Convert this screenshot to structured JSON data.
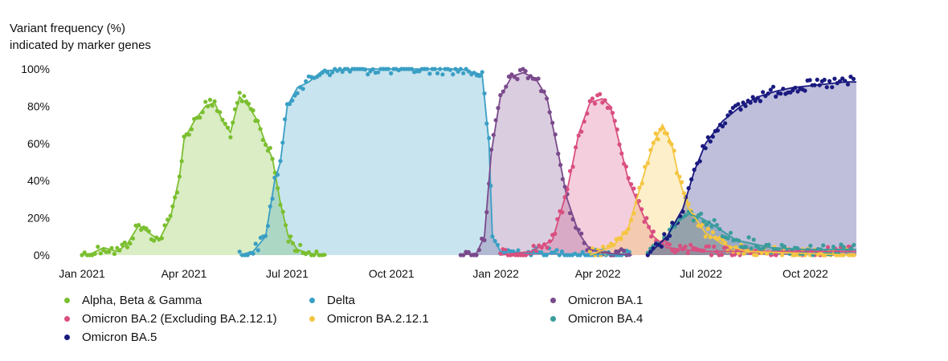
{
  "chart_data": {
    "type": "area",
    "ylabel_lines": [
      "Variant frequency (%)",
      "indicated by marker genes"
    ],
    "x_ticks": [
      "Jan 2021",
      "Apr 2021",
      "Jul 2021",
      "Oct 2021",
      "Jan 2022",
      "Apr 2022",
      "Jul 2022",
      "Oct 2022"
    ],
    "y_ticks": [
      "0%",
      "20%",
      "40%",
      "60%",
      "80%",
      "100%"
    ],
    "ylim": [
      0,
      100
    ],
    "x_range_months": [
      "2021-01",
      "2022-11"
    ],
    "grid": false,
    "legend_position": "bottom",
    "series": [
      {
        "name": "Alpha, Beta & Gamma",
        "color": "#7bbf30",
        "points": [
          [
            "2021-01-01",
            0
          ],
          [
            "2021-01-10",
            1
          ],
          [
            "2021-01-20",
            4
          ],
          [
            "2021-02-01",
            2
          ],
          [
            "2021-02-10",
            6
          ],
          [
            "2021-02-20",
            16
          ],
          [
            "2021-03-01",
            12
          ],
          [
            "2021-03-10",
            8
          ],
          [
            "2021-03-20",
            20
          ],
          [
            "2021-03-28",
            42
          ],
          [
            "2021-04-01",
            62
          ],
          [
            "2021-04-10",
            72
          ],
          [
            "2021-04-20",
            80
          ],
          [
            "2021-04-28",
            82
          ],
          [
            "2021-05-05",
            72
          ],
          [
            "2021-05-12",
            66
          ],
          [
            "2021-05-20",
            85
          ],
          [
            "2021-05-28",
            80
          ],
          [
            "2021-06-05",
            72
          ],
          [
            "2021-06-12",
            60
          ],
          [
            "2021-06-18",
            52
          ],
          [
            "2021-06-25",
            28
          ],
          [
            "2021-07-02",
            10
          ],
          [
            "2021-07-10",
            3
          ],
          [
            "2021-07-20",
            1
          ],
          [
            "2021-08-05",
            0
          ]
        ]
      },
      {
        "name": "Delta",
        "color": "#3a9fc4",
        "points": [
          [
            "2021-05-20",
            0
          ],
          [
            "2021-06-01",
            2
          ],
          [
            "2021-06-12",
            10
          ],
          [
            "2021-06-20",
            40
          ],
          [
            "2021-06-25",
            50
          ],
          [
            "2021-07-01",
            80
          ],
          [
            "2021-07-10",
            90
          ],
          [
            "2021-07-20",
            93
          ],
          [
            "2021-08-01",
            99
          ],
          [
            "2021-09-01",
            100
          ],
          [
            "2021-12-01",
            100
          ],
          [
            "2021-12-20",
            97
          ],
          [
            "2021-12-26",
            60
          ],
          [
            "2021-12-29",
            10
          ],
          [
            "2022-01-05",
            2
          ],
          [
            "2022-02-01",
            1
          ],
          [
            "2022-05-01",
            0
          ]
        ]
      },
      {
        "name": "Omicron BA.1",
        "color": "#7a4a8c",
        "points": [
          [
            "2021-12-01",
            0
          ],
          [
            "2021-12-15",
            1
          ],
          [
            "2021-12-22",
            10
          ],
          [
            "2021-12-28",
            55
          ],
          [
            "2022-01-05",
            85
          ],
          [
            "2022-01-15",
            96
          ],
          [
            "2022-01-25",
            98
          ],
          [
            "2022-02-05",
            95
          ],
          [
            "2022-02-15",
            85
          ],
          [
            "2022-02-25",
            55
          ],
          [
            "2022-03-05",
            30
          ],
          [
            "2022-03-15",
            12
          ],
          [
            "2022-03-25",
            3
          ],
          [
            "2022-04-10",
            1
          ],
          [
            "2022-05-01",
            0
          ]
        ]
      },
      {
        "name": "Omicron BA.2 (Excluding BA.2.12.1)",
        "color": "#d94f80",
        "points": [
          [
            "2022-01-05",
            0
          ],
          [
            "2022-02-01",
            2
          ],
          [
            "2022-02-20",
            8
          ],
          [
            "2022-03-05",
            35
          ],
          [
            "2022-03-15",
            65
          ],
          [
            "2022-03-25",
            82
          ],
          [
            "2022-04-05",
            84
          ],
          [
            "2022-04-12",
            80
          ],
          [
            "2022-04-20",
            60
          ],
          [
            "2022-04-28",
            40
          ],
          [
            "2022-05-05",
            30
          ],
          [
            "2022-05-12",
            20
          ],
          [
            "2022-05-20",
            10
          ],
          [
            "2022-06-01",
            4
          ],
          [
            "2022-07-01",
            2
          ],
          [
            "2022-11-15",
            2
          ]
        ]
      },
      {
        "name": "Omicron BA.2.12.1",
        "color": "#f5c542",
        "points": [
          [
            "2022-03-25",
            0
          ],
          [
            "2022-04-15",
            5
          ],
          [
            "2022-04-28",
            15
          ],
          [
            "2022-05-10",
            40
          ],
          [
            "2022-05-20",
            60
          ],
          [
            "2022-05-28",
            70
          ],
          [
            "2022-06-05",
            60
          ],
          [
            "2022-06-12",
            40
          ],
          [
            "2022-06-20",
            25
          ],
          [
            "2022-07-05",
            12
          ],
          [
            "2022-07-20",
            6
          ],
          [
            "2022-08-10",
            2
          ],
          [
            "2022-11-15",
            0
          ]
        ]
      },
      {
        "name": "Omicron BA.4",
        "color": "#3a9c9c",
        "points": [
          [
            "2022-05-15",
            0
          ],
          [
            "2022-06-01",
            10
          ],
          [
            "2022-06-10",
            18
          ],
          [
            "2022-06-20",
            22
          ],
          [
            "2022-07-01",
            20
          ],
          [
            "2022-07-15",
            15
          ],
          [
            "2022-08-01",
            8
          ],
          [
            "2022-09-01",
            4
          ],
          [
            "2022-10-01",
            3
          ],
          [
            "2022-11-15",
            3
          ]
        ]
      },
      {
        "name": "Omicron BA.5",
        "color": "#1a1a80",
        "points": [
          [
            "2022-05-15",
            0
          ],
          [
            "2022-06-01",
            10
          ],
          [
            "2022-06-15",
            25
          ],
          [
            "2022-06-25",
            45
          ],
          [
            "2022-07-05",
            60
          ],
          [
            "2022-07-20",
            72
          ],
          [
            "2022-08-05",
            80
          ],
          [
            "2022-08-20",
            85
          ],
          [
            "2022-09-05",
            88
          ],
          [
            "2022-09-20",
            90
          ],
          [
            "2022-10-05",
            91
          ],
          [
            "2022-10-20",
            92
          ],
          [
            "2022-11-05",
            93
          ],
          [
            "2022-11-15",
            93
          ]
        ]
      }
    ]
  }
}
